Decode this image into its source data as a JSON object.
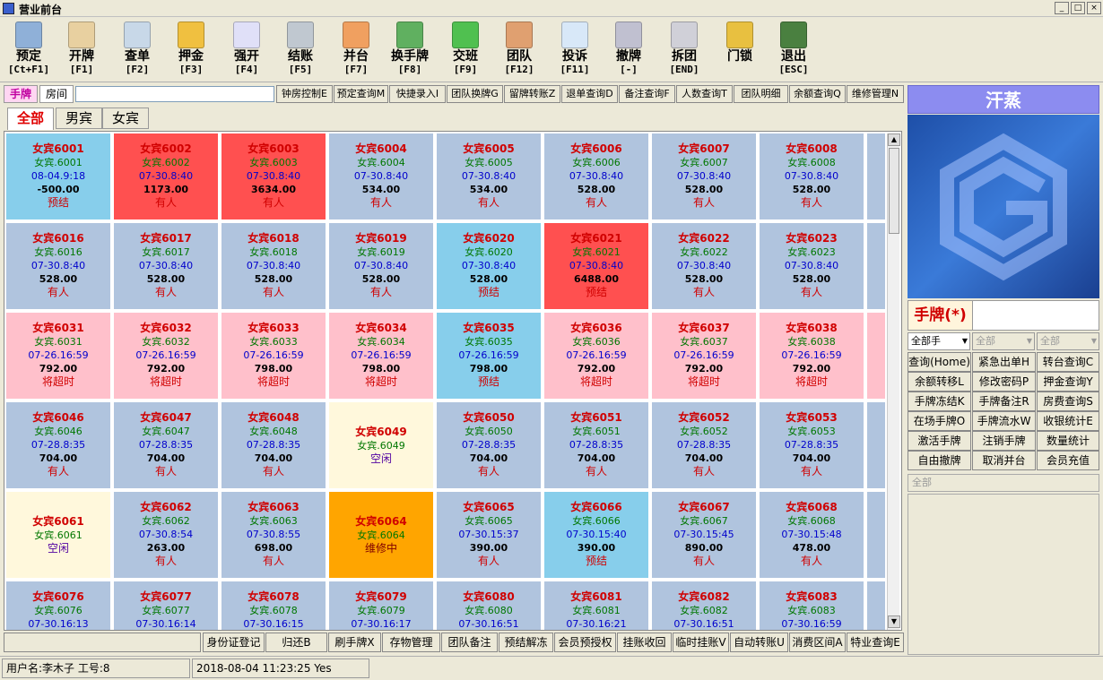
{
  "window": {
    "title": "营业前台"
  },
  "toolbar": [
    {
      "label": "预定",
      "key": "[Ct+F1]",
      "icon": "reservation-icon",
      "color": "#8fb0d8"
    },
    {
      "label": "开牌",
      "key": "[F1]",
      "icon": "open-card-icon",
      "color": "#e8d0a0"
    },
    {
      "label": "查单",
      "key": "[F2]",
      "icon": "search-bill-icon",
      "color": "#c8d8e8"
    },
    {
      "label": "押金",
      "key": "[F3]",
      "icon": "deposit-coins-icon",
      "color": "#f0c040"
    },
    {
      "label": "强开",
      "key": "[F4]",
      "icon": "force-open-icon",
      "color": "#e0e0f8"
    },
    {
      "label": "结账",
      "key": "[F5]",
      "icon": "calculator-icon",
      "color": "#c0c8d0"
    },
    {
      "label": "并台",
      "key": "[F7]",
      "icon": "merge-table-icon",
      "color": "#f0a060"
    },
    {
      "label": "换手牌",
      "key": "[F8]",
      "icon": "swap-card-icon",
      "color": "#60b060"
    },
    {
      "label": "交班",
      "key": "[F9]",
      "icon": "shift-refresh-icon",
      "color": "#50c050"
    },
    {
      "label": "团队",
      "key": "[F12]",
      "icon": "team-icon",
      "color": "#e0a070"
    },
    {
      "label": "投诉",
      "key": "[F11]",
      "icon": "complaint-mail-icon",
      "color": "#d8e8f8"
    },
    {
      "label": "撤牌",
      "key": "[-]",
      "icon": "revoke-card-icon",
      "color": "#c0c0d0"
    },
    {
      "label": "拆团",
      "key": "[END]",
      "icon": "split-team-icon",
      "color": "#d0d0d8"
    },
    {
      "label": "门锁",
      "key": "",
      "icon": "padlock-icon",
      "color": "#e8c040"
    },
    {
      "label": "退出",
      "key": "[ESC]",
      "icon": "exit-door-icon",
      "color": "#4a8040"
    }
  ],
  "mode_tabs": {
    "card": "手牌",
    "room": "房间"
  },
  "func_buttons": [
    "钟房控制E",
    "预定查询M",
    "快捷录入I",
    "团队换牌G",
    "留牌转账Z",
    "退单查询D",
    "备注查询F",
    "人数查询T",
    "团队明细",
    "余额查询Q",
    "维修管理N"
  ],
  "gender_tabs": [
    "全部",
    "男宾",
    "女宾"
  ],
  "colors": {
    "occupied": "#b0c4de",
    "prepaid": "#87ceeb",
    "red": "#ff5050",
    "overtime": "#ffc0cb",
    "idle": "#fff8dc",
    "repair": "#ffa500"
  },
  "rooms": [
    [
      {
        "name": "女宾6001",
        "sub": "女宾.6001",
        "time": "08-04.9:18",
        "amount": "-500.00",
        "status": "预结",
        "bg": "prepaid"
      },
      {
        "name": "女宾6002",
        "sub": "女宾.6002",
        "time": "07-30.8:40",
        "amount": "1173.00",
        "status": "有人",
        "bg": "red"
      },
      {
        "name": "女宾6003",
        "sub": "女宾.6003",
        "time": "07-30.8:40",
        "amount": "3634.00",
        "status": "有人",
        "bg": "red"
      },
      {
        "name": "女宾6004",
        "sub": "女宾.6004",
        "time": "07-30.8:40",
        "amount": "534.00",
        "status": "有人",
        "bg": "occupied"
      },
      {
        "name": "女宾6005",
        "sub": "女宾.6005",
        "time": "07-30.8:40",
        "amount": "534.00",
        "status": "有人",
        "bg": "occupied"
      },
      {
        "name": "女宾6006",
        "sub": "女宾.6006",
        "time": "07-30.8:40",
        "amount": "528.00",
        "status": "有人",
        "bg": "occupied"
      },
      {
        "name": "女宾6007",
        "sub": "女宾.6007",
        "time": "07-30.8:40",
        "amount": "528.00",
        "status": "有人",
        "bg": "occupied"
      },
      {
        "name": "女宾6008",
        "sub": "女宾.6008",
        "time": "07-30.8:40",
        "amount": "528.00",
        "status": "有人",
        "bg": "occupied"
      }
    ],
    [
      {
        "name": "女宾6016",
        "sub": "女宾.6016",
        "time": "07-30.8:40",
        "amount": "528.00",
        "status": "有人",
        "bg": "occupied"
      },
      {
        "name": "女宾6017",
        "sub": "女宾.6017",
        "time": "07-30.8:40",
        "amount": "528.00",
        "status": "有人",
        "bg": "occupied"
      },
      {
        "name": "女宾6018",
        "sub": "女宾.6018",
        "time": "07-30.8:40",
        "amount": "528.00",
        "status": "有人",
        "bg": "occupied"
      },
      {
        "name": "女宾6019",
        "sub": "女宾.6019",
        "time": "07-30.8:40",
        "amount": "528.00",
        "status": "有人",
        "bg": "occupied"
      },
      {
        "name": "女宾6020",
        "sub": "女宾.6020",
        "time": "07-30.8:40",
        "amount": "528.00",
        "status": "预结",
        "bg": "prepaid"
      },
      {
        "name": "女宾6021",
        "sub": "女宾.6021",
        "time": "07-30.8:40",
        "amount": "6488.00",
        "status": "预结",
        "bg": "red"
      },
      {
        "name": "女宾6022",
        "sub": "女宾.6022",
        "time": "07-30.8:40",
        "amount": "528.00",
        "status": "有人",
        "bg": "occupied"
      },
      {
        "name": "女宾6023",
        "sub": "女宾.6023",
        "time": "07-30.8:40",
        "amount": "528.00",
        "status": "有人",
        "bg": "occupied"
      }
    ],
    [
      {
        "name": "女宾6031",
        "sub": "女宾.6031",
        "time": "07-26.16:59",
        "amount": "792.00",
        "status": "将超时",
        "bg": "overtime"
      },
      {
        "name": "女宾6032",
        "sub": "女宾.6032",
        "time": "07-26.16:59",
        "amount": "792.00",
        "status": "将超时",
        "bg": "overtime"
      },
      {
        "name": "女宾6033",
        "sub": "女宾.6033",
        "time": "07-26.16:59",
        "amount": "798.00",
        "status": "将超时",
        "bg": "overtime"
      },
      {
        "name": "女宾6034",
        "sub": "女宾.6034",
        "time": "07-26.16:59",
        "amount": "798.00",
        "status": "将超时",
        "bg": "overtime"
      },
      {
        "name": "女宾6035",
        "sub": "女宾.6035",
        "time": "07-26.16:59",
        "amount": "798.00",
        "status": "预结",
        "bg": "prepaid"
      },
      {
        "name": "女宾6036",
        "sub": "女宾.6036",
        "time": "07-26.16:59",
        "amount": "792.00",
        "status": "将超时",
        "bg": "overtime"
      },
      {
        "name": "女宾6037",
        "sub": "女宾.6037",
        "time": "07-26.16:59",
        "amount": "792.00",
        "status": "将超时",
        "bg": "overtime"
      },
      {
        "name": "女宾6038",
        "sub": "女宾.6038",
        "time": "07-26.16:59",
        "amount": "792.00",
        "status": "将超时",
        "bg": "overtime"
      }
    ],
    [
      {
        "name": "女宾6046",
        "sub": "女宾.6046",
        "time": "07-28.8:35",
        "amount": "704.00",
        "status": "有人",
        "bg": "occupied"
      },
      {
        "name": "女宾6047",
        "sub": "女宾.6047",
        "time": "07-28.8:35",
        "amount": "704.00",
        "status": "有人",
        "bg": "occupied"
      },
      {
        "name": "女宾6048",
        "sub": "女宾.6048",
        "time": "07-28.8:35",
        "amount": "704.00",
        "status": "有人",
        "bg": "occupied"
      },
      {
        "name": "女宾6049",
        "sub": "女宾.6049",
        "time": "",
        "amount": "",
        "status": "空闲",
        "bg": "idle"
      },
      {
        "name": "女宾6050",
        "sub": "女宾.6050",
        "time": "07-28.8:35",
        "amount": "704.00",
        "status": "有人",
        "bg": "occupied"
      },
      {
        "name": "女宾6051",
        "sub": "女宾.6051",
        "time": "07-28.8:35",
        "amount": "704.00",
        "status": "有人",
        "bg": "occupied"
      },
      {
        "name": "女宾6052",
        "sub": "女宾.6052",
        "time": "07-28.8:35",
        "amount": "704.00",
        "status": "有人",
        "bg": "occupied"
      },
      {
        "name": "女宾6053",
        "sub": "女宾.6053",
        "time": "07-28.8:35",
        "amount": "704.00",
        "status": "有人",
        "bg": "occupied"
      }
    ],
    [
      {
        "name": "女宾6061",
        "sub": "女宾.6061",
        "time": "",
        "amount": "",
        "status": "空闲",
        "bg": "idle"
      },
      {
        "name": "女宾6062",
        "sub": "女宾.6062",
        "time": "07-30.8:54",
        "amount": "263.00",
        "status": "有人",
        "bg": "occupied"
      },
      {
        "name": "女宾6063",
        "sub": "女宾.6063",
        "time": "07-30.8:55",
        "amount": "698.00",
        "status": "有人",
        "bg": "occupied"
      },
      {
        "name": "女宾6064",
        "sub": "女宾.6064",
        "time": "",
        "amount": "",
        "status": "维修中",
        "bg": "repair"
      },
      {
        "name": "女宾6065",
        "sub": "女宾.6065",
        "time": "07-30.15:37",
        "amount": "390.00",
        "status": "有人",
        "bg": "occupied"
      },
      {
        "name": "女宾6066",
        "sub": "女宾.6066",
        "time": "07-30.15:40",
        "amount": "390.00",
        "status": "预结",
        "bg": "prepaid"
      },
      {
        "name": "女宾6067",
        "sub": "女宾.6067",
        "time": "07-30.15:45",
        "amount": "890.00",
        "status": "有人",
        "bg": "occupied"
      },
      {
        "name": "女宾6068",
        "sub": "女宾.6068",
        "time": "07-30.15:48",
        "amount": "478.00",
        "status": "有人",
        "bg": "occupied"
      }
    ],
    [
      {
        "name": "女宾6076",
        "sub": "女宾.6076",
        "time": "07-30.16:13",
        "amount": "",
        "status": "",
        "bg": "occupied"
      },
      {
        "name": "女宾6077",
        "sub": "女宾.6077",
        "time": "07-30.16:14",
        "amount": "",
        "status": "",
        "bg": "occupied"
      },
      {
        "name": "女宾6078",
        "sub": "女宾.6078",
        "time": "07-30.16:15",
        "amount": "",
        "status": "",
        "bg": "occupied"
      },
      {
        "name": "女宾6079",
        "sub": "女宾.6079",
        "time": "07-30.16:17",
        "amount": "",
        "status": "",
        "bg": "occupied"
      },
      {
        "name": "女宾6080",
        "sub": "女宾.6080",
        "time": "07-30.16:51",
        "amount": "",
        "status": "",
        "bg": "occupied"
      },
      {
        "name": "女宾6081",
        "sub": "女宾.6081",
        "time": "07-30.16:21",
        "amount": "",
        "status": "",
        "bg": "occupied"
      },
      {
        "name": "女宾6082",
        "sub": "女宾.6082",
        "time": "07-30.16:51",
        "amount": "",
        "status": "",
        "bg": "occupied"
      },
      {
        "name": "女宾6083",
        "sub": "女宾.6083",
        "time": "07-30.16:59",
        "amount": "",
        "status": "",
        "bg": "occupied"
      }
    ]
  ],
  "right_col_colors": [
    "occupied",
    "occupied",
    "overtime",
    "occupied",
    "occupied",
    "occupied"
  ],
  "bottom_buttons": [
    "身份证登记",
    "归还B",
    "刷手牌X",
    "存物管理",
    "团队备注",
    "预结解冻",
    "会员预授权",
    "挂账收回",
    "临时挂账V",
    "自动转账U",
    "消费区间A",
    "特业查询E"
  ],
  "status": {
    "user": "用户名:李木子 工号:8",
    "datetime": "2018-08-04 11:23:25 Yes"
  },
  "right_panel": {
    "header": "汗蒸",
    "card_label": "手牌(*)",
    "selects": [
      "全部手",
      "全部",
      "全部"
    ],
    "buttons": [
      [
        "查询(Home)",
        "紧急出单H",
        "转台查询C"
      ],
      [
        "余额转移L",
        "修改密码P",
        "押金查询Y"
      ],
      [
        "手牌冻结K",
        "手牌备注R",
        "房费查询S"
      ],
      [
        "在场手牌O",
        "手牌流水W",
        "收银统计E"
      ],
      [
        "激活手牌",
        "注销手牌",
        "数量统计"
      ],
      [
        "自由撤牌",
        "取消并台",
        "会员充值"
      ]
    ],
    "filter": "全部"
  }
}
